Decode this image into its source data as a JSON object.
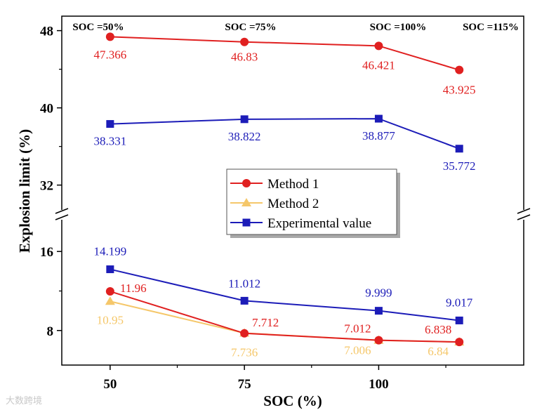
{
  "chart_data": {
    "type": "line",
    "xlabel": "SOC (%)",
    "ylabel": "Explosion limit (%)",
    "x_ticks": [
      50,
      75,
      100
    ],
    "y_ticks_upper": [
      32,
      40,
      48
    ],
    "y_ticks_lower": [
      8,
      16
    ],
    "ylim_upper": [
      29.5,
      49.5
    ],
    "ylim_lower": [
      4.5,
      19
    ],
    "xlim": [
      41,
      127
    ],
    "top_labels": [
      "SOC =50%",
      "SOC =75%",
      "SOC =100%",
      "SOC =115%"
    ],
    "upper_series": [
      {
        "name": "Method 1",
        "color": "#e02020",
        "marker": "circle",
        "x": [
          50,
          75,
          100,
          115
        ],
        "values": [
          47.366,
          46.83,
          46.421,
          43.925
        ],
        "labels": [
          "47.366",
          "46.83",
          "46.421",
          "43.925"
        ]
      },
      {
        "name": "Experimental value",
        "color": "#1c1cb8",
        "marker": "square",
        "x": [
          50,
          75,
          100,
          115
        ],
        "values": [
          38.331,
          38.822,
          38.877,
          35.772
        ],
        "labels": [
          "38.331",
          "38.822",
          "38.877",
          "35.772"
        ]
      }
    ],
    "lower_series": [
      {
        "name": "Experimental value",
        "color": "#1c1cb8",
        "marker": "square",
        "x": [
          50,
          75,
          100,
          115
        ],
        "values": [
          14.199,
          11.012,
          9.999,
          9.017
        ],
        "labels": [
          "14.199",
          "11.012",
          "9.999",
          "9.017"
        ]
      },
      {
        "name": "Method 1",
        "color": "#e02020",
        "marker": "circle",
        "x": [
          50,
          75,
          100,
          115
        ],
        "values": [
          11.96,
          7.712,
          7.012,
          6.838
        ],
        "labels": [
          "11.96",
          "7.712",
          "7.012",
          "6.838"
        ]
      },
      {
        "name": "Method 2",
        "color": "#f5c76a",
        "marker": "triangle",
        "x": [
          50,
          75,
          100,
          115
        ],
        "values": [
          10.95,
          7.736,
          7.006,
          6.84
        ],
        "labels": [
          "10.95",
          "7.736",
          "7.006",
          "6.84"
        ]
      }
    ],
    "legend": [
      {
        "name": "Method 1",
        "color": "#e02020",
        "marker": "circle"
      },
      {
        "name": "Method 2",
        "color": "#f5c76a",
        "marker": "triangle"
      },
      {
        "name": "Experimental value",
        "color": "#1c1cb8",
        "marker": "square"
      }
    ],
    "legend_position": "center"
  },
  "watermark": "大数跨境"
}
